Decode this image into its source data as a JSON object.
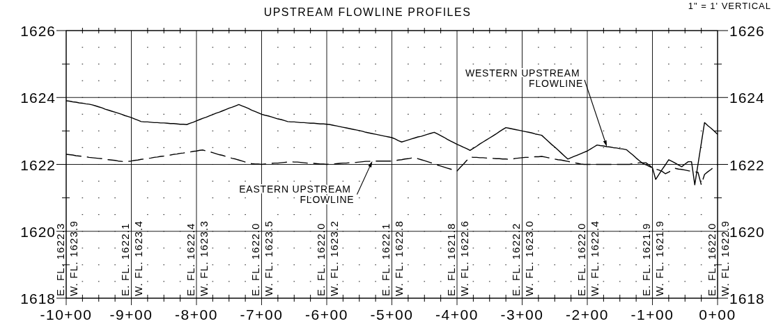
{
  "chart_data": {
    "type": "line",
    "title": "UPSTREAM FLOWLINE PROFILES",
    "annotations": [
      "1\" = 1' VERTICAL",
      "E. FL. 1622.3",
      "W. FL. 1623.9",
      "E. FL. 1622.1",
      "W. FL. 1623.4",
      "E. FL. 1622.4",
      "W. FL. 1623.3",
      "E. FL. 1622.0",
      "W. FL. 1623.5",
      "E. FL. 1622.0",
      "W. FL. 1623.2",
      "E. FL. 1622.1",
      "W. FL. 1622.8",
      "E. FL. 1621.8",
      "W. FL. 1622.6",
      "E. FL. 1622.2",
      "W. FL. 1623.0",
      "E. FL. 1622.0",
      "W. FL. 1622.4",
      "E. FL. 1621.9",
      "W. FL. 1621.9",
      "E. FL. 1622.0",
      "W. FL. 1622.9"
    ],
    "categories": [
      "-10+00",
      null,
      null,
      null,
      null,
      null,
      null,
      null,
      null,
      null,
      null,
      null,
      null,
      null,
      null,
      null,
      null,
      null,
      null,
      null,
      "-9+00",
      null,
      null,
      null,
      null,
      null,
      null,
      null,
      null,
      null,
      null,
      null,
      null,
      null,
      null,
      null,
      null,
      null,
      null,
      null,
      "-8+00",
      null,
      null,
      null,
      null,
      null,
      null,
      null,
      null,
      null,
      null,
      null,
      null,
      null,
      null,
      null,
      null,
      null,
      null,
      null,
      "-7+00",
      null,
      null,
      null,
      null,
      null,
      null,
      null,
      null,
      null,
      null,
      null,
      null,
      null,
      null,
      null,
      null,
      null,
      null,
      null,
      "-6+00",
      null,
      null,
      null,
      null,
      null,
      null,
      null,
      null,
      null,
      null,
      null,
      null,
      null,
      null,
      null,
      null,
      null,
      null,
      null,
      "-5+00",
      null,
      null,
      null,
      null,
      null,
      null,
      null,
      null,
      null,
      null,
      null,
      null,
      null,
      null,
      null,
      null,
      null,
      null,
      null,
      "-4+00",
      null,
      null,
      null,
      null,
      null,
      null,
      null,
      null,
      null,
      null,
      null,
      null,
      null,
      null,
      null,
      null,
      null,
      null,
      null,
      "-3+00",
      null,
      null,
      null,
      null,
      null,
      null,
      null,
      null,
      null,
      null,
      null,
      null,
      null,
      null,
      null,
      null,
      null,
      null,
      null,
      "-2+00",
      null,
      null,
      null,
      null,
      null,
      null,
      null,
      null,
      null,
      null,
      null,
      null,
      null,
      null,
      null,
      null,
      null,
      null,
      null,
      "-1+00",
      null,
      null,
      null,
      null,
      null,
      null,
      null,
      null,
      null,
      null,
      null,
      null,
      null,
      null,
      null,
      null,
      null,
      null,
      null,
      "0+00"
    ],
    "ylim": [
      1618,
      1626
    ],
    "yticks": [
      1618,
      {
        "value": 1619,
        "label": null
      },
      1620,
      {
        "value": 1621,
        "label": null
      },
      1622,
      {
        "value": 1623,
        "label": null
      },
      1624,
      {
        "value": 1625,
        "label": null
      },
      1626
    ],
    "y2lim": [
      1618,
      1626
    ],
    "y2ticks": [
      1618,
      {
        "value": 1619,
        "label": null
      },
      1620,
      {
        "value": 1621,
        "label": null
      },
      1622,
      {
        "value": 1623,
        "label": null
      },
      1624,
      {
        "value": 1625,
        "label": null
      },
      1626
    ],
    "grid": true,
    "series": [
      {
        "name": "EASTERN UPSTREAM FLOWLINE",
        "color": "#000000",
        "line_style": "dashed",
        "values": [
          1622.3,
          1622.29,
          1622.28,
          1622.26,
          1622.25,
          1622.24,
          1622.23,
          1622.21,
          1622.2,
          1622.19,
          1622.18,
          1622.17,
          1622.15,
          1622.14,
          1622.13,
          1622.12,
          1622.1,
          1622.09,
          1622.08,
          1622.09,
          1622.1,
          1622.12,
          1622.13,
          1622.15,
          1622.16,
          1622.18,
          1622.19,
          1622.21,
          1622.22,
          1622.24,
          1622.25,
          1622.27,
          1622.28,
          1622.3,
          1622.31,
          1622.33,
          1622.34,
          1622.36,
          1622.37,
          1622.39,
          1622.4,
          1622.42,
          1622.43,
          1622.4,
          1622.38,
          1622.35,
          1622.32,
          1622.29,
          1622.27,
          1622.24,
          1622.21,
          1622.18,
          1622.16,
          1622.13,
          1622.1,
          1622.07,
          1622.05,
          1622.02,
          1622.01,
          1622.01,
          1622.0,
          1622.01,
          1622.02,
          1622.03,
          1622.04,
          1622.04,
          1622.05,
          1622.06,
          1622.07,
          1622.08,
          1622.07,
          1622.07,
          1622.06,
          1622.05,
          1622.04,
          1622.04,
          1622.03,
          1622.02,
          1622.01,
          1622.01,
          1622.0,
          1622.01,
          1622.01,
          1622.02,
          1622.03,
          1622.04,
          1622.04,
          1622.05,
          1622.06,
          1622.06,
          1622.07,
          1622.08,
          1622.09,
          1622.09,
          1622.1,
          1622.1,
          1622.1,
          1622.1,
          1622.1,
          1622.1,
          1622.1,
          1622.11,
          1622.13,
          1622.14,
          1622.16,
          1622.17,
          1622.19,
          1622.2,
          1622.17,
          1622.14,
          1622.11,
          1622.08,
          1622.05,
          1622.02,
          1621.98,
          1621.95,
          1621.92,
          1621.89,
          1621.86,
          1621.83,
          1621.8,
          1621.91,
          1622.01,
          1622.12,
          1622.22,
          1622.21,
          1622.21,
          1622.2,
          1622.2,
          1622.19,
          1622.19,
          1622.18,
          1622.17,
          1622.17,
          1622.16,
          1622.16,
          1622.15,
          1622.16,
          1622.18,
          1622.19,
          1622.2,
          1622.21,
          1622.21,
          1622.22,
          1622.23,
          1622.23,
          1622.24,
          1622.22,
          1622.2,
          1622.18,
          1622.16,
          1622.14,
          1622.13,
          1622.11,
          1622.09,
          1622.07,
          1622.05,
          1622.03,
          1622.01,
          1622.0,
          1622.0,
          1622.0,
          1622.0,
          1622.0,
          1622.0,
          1622.0,
          1622.0,
          1622.0,
          1622.0,
          1622.0,
          1622.0,
          1622.0,
          1622.0,
          1622.0,
          1622.02,
          1622.03,
          1622.05,
          1622.05,
          1622.05,
          1621.98,
          1621.9,
          1621.86,
          1621.83,
          1621.79,
          1621.72,
          1621.77,
          1621.83,
          1621.88,
          1621.86,
          1621.85,
          1621.83,
          1621.81,
          1621.79,
          1621.78,
          1621.76,
          1621.39,
          1621.7,
          1621.78,
          1621.85,
          1621.93,
          1622.0
        ]
      },
      {
        "name": "WESTERN UPSTREAM FLOWLINE",
        "color": "#000000",
        "line_style": "solid",
        "values": [
          1623.9,
          1623.89,
          1623.87,
          1623.86,
          1623.84,
          1623.83,
          1623.81,
          1623.8,
          1623.78,
          1623.75,
          1623.72,
          1623.69,
          1623.65,
          1623.62,
          1623.59,
          1623.56,
          1623.53,
          1623.5,
          1623.46,
          1623.43,
          1623.4,
          1623.36,
          1623.32,
          1623.28,
          1623.27,
          1623.27,
          1623.26,
          1623.25,
          1623.25,
          1623.24,
          1623.24,
          1623.23,
          1623.22,
          1623.22,
          1623.21,
          1623.2,
          1623.2,
          1623.19,
          1623.23,
          1623.26,
          1623.3,
          1623.34,
          1623.38,
          1623.41,
          1623.45,
          1623.49,
          1623.53,
          1623.56,
          1623.6,
          1623.64,
          1623.68,
          1623.71,
          1623.75,
          1623.79,
          1623.75,
          1623.71,
          1623.67,
          1623.62,
          1623.58,
          1623.54,
          1623.5,
          1623.47,
          1623.45,
          1623.42,
          1623.39,
          1623.36,
          1623.34,
          1623.31,
          1623.28,
          1623.27,
          1623.27,
          1623.26,
          1623.25,
          1623.25,
          1623.24,
          1623.23,
          1623.23,
          1623.22,
          1623.21,
          1623.21,
          1623.2,
          1623.19,
          1623.17,
          1623.15,
          1623.13,
          1623.11,
          1623.09,
          1623.07,
          1623.05,
          1623.03,
          1623.01,
          1622.99,
          1622.96,
          1622.94,
          1622.92,
          1622.9,
          1622.88,
          1622.86,
          1622.84,
          1622.82,
          1622.8,
          1622.76,
          1622.71,
          1622.67,
          1622.7,
          1622.73,
          1622.76,
          1622.79,
          1622.82,
          1622.84,
          1622.87,
          1622.9,
          1622.93,
          1622.96,
          1622.91,
          1622.86,
          1622.81,
          1622.75,
          1622.7,
          1622.65,
          1622.6,
          1622.56,
          1622.51,
          1622.47,
          1622.42,
          1622.48,
          1622.54,
          1622.61,
          1622.67,
          1622.73,
          1622.79,
          1622.85,
          1622.91,
          1622.98,
          1623.04,
          1623.1,
          1623.08,
          1623.06,
          1623.04,
          1623.02,
          1623.0,
          1622.98,
          1622.96,
          1622.94,
          1622.91,
          1622.89,
          1622.87,
          1622.78,
          1622.69,
          1622.6,
          1622.52,
          1622.43,
          1622.34,
          1622.25,
          1622.16,
          1622.2,
          1622.24,
          1622.28,
          1622.32,
          1622.36,
          1622.4,
          1622.46,
          1622.52,
          1622.58,
          1622.56,
          1622.55,
          1622.53,
          1622.52,
          1622.5,
          1622.49,
          1622.47,
          1622.46,
          1622.44,
          1622.36,
          1622.28,
          1622.19,
          1622.11,
          1622.03,
          1621.99,
          1621.94,
          1621.9,
          1621.55,
          1621.7,
          1621.85,
          1621.99,
          1622.14,
          1622.09,
          1622.04,
          1621.98,
          1621.93,
          1622.01,
          1622.08,
          1622.08,
          1621.39,
          1622.01,
          1622.63,
          1623.25,
          1623.16,
          1623.08,
          1622.99,
          1622.9
        ]
      }
    ]
  }
}
